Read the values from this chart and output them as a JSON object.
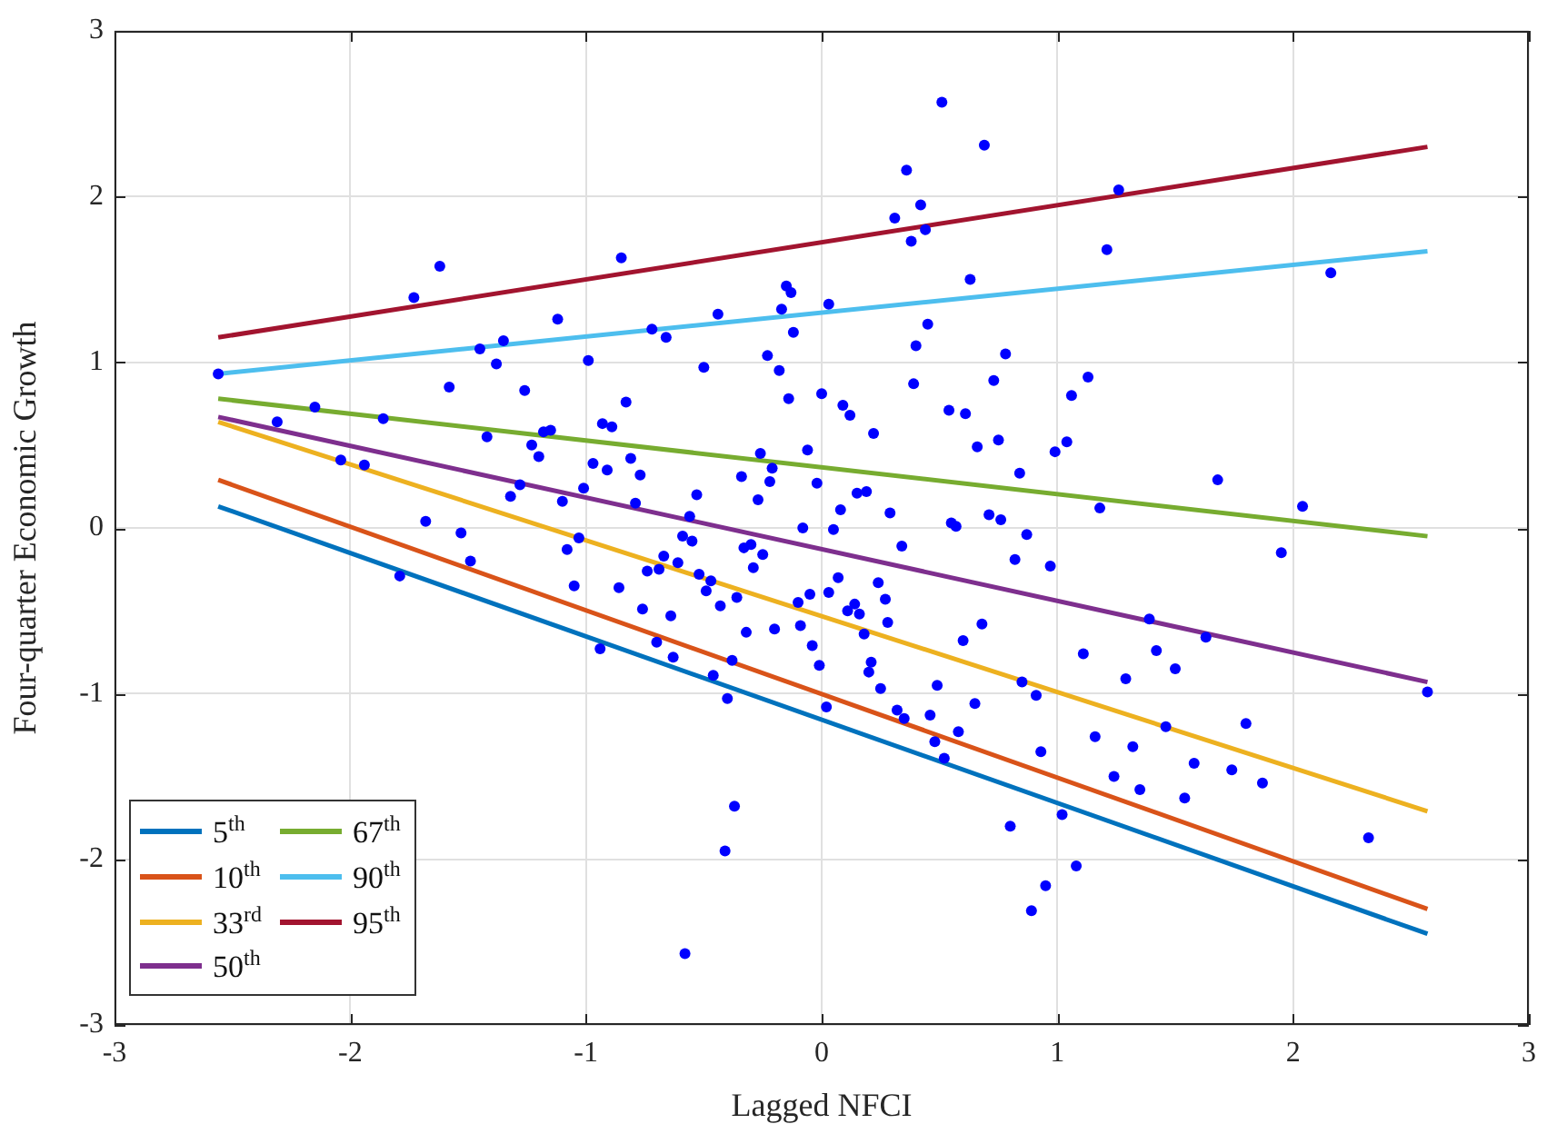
{
  "chart_data": {
    "type": "scatter",
    "xlabel": "Lagged NFCI",
    "ylabel": "Four-quarter Economic Growth",
    "xlim": [
      -3,
      3
    ],
    "ylim": [
      -3,
      3
    ],
    "xticks": [
      -3,
      -2,
      -1,
      0,
      1,
      2,
      3
    ],
    "yticks": [
      -3,
      -2,
      -1,
      0,
      1,
      2,
      3
    ],
    "grid": true,
    "legend": "bottom left",
    "series": [
      {
        "type": "scatter",
        "color": "#0000ff",
        "marker": "circle",
        "x": [
          -2.56,
          -1.62,
          -1.73,
          -0.85,
          -1.12,
          -1.45,
          -1.35,
          -1.38,
          -0.99,
          -0.72,
          -0.66,
          -0.44,
          -0.15,
          -0.13,
          -0.17,
          -0.12,
          0.03,
          -0.5,
          -0.23,
          -0.18,
          -0.14,
          0.0,
          -1.58,
          -1.26,
          -0.83,
          -2.15,
          -2.31,
          -1.86,
          -1.42,
          -0.93,
          -0.89,
          -1.18,
          -1.15,
          -1.23,
          -1.2,
          -0.26,
          -0.06,
          -0.21,
          -0.97,
          -0.91,
          -0.81,
          -0.77,
          -2.04,
          -1.94,
          -0.34,
          -0.22,
          -0.02,
          -1.28,
          -1.32,
          -1.1,
          -1.01,
          -0.79,
          -0.53,
          -0.27,
          -0.56,
          -0.08,
          -1.68,
          -1.53,
          -1.03,
          -0.59,
          0.51,
          0.69,
          0.36,
          0.42,
          0.31,
          0.44,
          0.38,
          1.26,
          1.21,
          2.16,
          0.63,
          0.45,
          0.4,
          0.78,
          0.39,
          0.73,
          1.13,
          1.06,
          0.09,
          0.12,
          0.54,
          0.61,
          0.22,
          0.66,
          0.75,
          0.99,
          1.04,
          0.84,
          1.68,
          2.04,
          0.15,
          0.19,
          0.08,
          0.29,
          0.71,
          0.76,
          1.18,
          0.55,
          0.57,
          0.05,
          0.87,
          -1.79,
          -1.49,
          -1.08,
          -1.05,
          -0.86,
          -0.94,
          -0.55,
          -0.67,
          -0.61,
          -0.74,
          -0.69,
          -0.52,
          -0.47,
          -0.49,
          -0.76,
          -0.64,
          -0.43,
          -0.36,
          -0.7,
          -0.63,
          -0.46,
          -0.38,
          -0.32,
          -0.2,
          -0.4,
          -0.33,
          -0.3,
          -0.25,
          -0.29,
          -0.1,
          -0.05,
          -0.09,
          -0.04,
          -0.01,
          0.02,
          0.03,
          -0.37,
          -0.41,
          -0.58,
          0.34,
          0.82,
          0.97,
          1.95,
          0.07,
          0.11,
          0.14,
          0.16,
          0.24,
          0.27,
          0.28,
          0.18,
          0.21,
          0.2,
          0.25,
          0.32,
          0.35,
          0.46,
          0.48,
          0.52,
          0.49,
          0.6,
          0.68,
          0.58,
          0.65,
          0.85,
          0.91,
          0.93,
          0.8,
          1.02,
          1.08,
          0.95,
          0.89,
          1.11,
          1.29,
          1.39,
          1.42,
          1.5,
          1.63,
          1.16,
          1.32,
          1.24,
          1.35,
          1.46,
          1.58,
          1.54,
          1.74,
          1.8,
          1.87,
          2.32,
          2.57
        ],
        "values": [
          0.93,
          1.58,
          1.39,
          1.63,
          1.26,
          1.08,
          1.13,
          0.99,
          1.01,
          1.2,
          1.15,
          1.29,
          1.46,
          1.42,
          1.32,
          1.18,
          1.35,
          0.97,
          1.04,
          0.95,
          0.78,
          0.81,
          0.85,
          0.83,
          0.76,
          0.73,
          0.64,
          0.66,
          0.55,
          0.63,
          0.61,
          0.58,
          0.59,
          0.5,
          0.43,
          0.45,
          0.47,
          0.36,
          0.39,
          0.35,
          0.42,
          0.32,
          0.41,
          0.38,
          0.31,
          0.28,
          0.27,
          0.26,
          0.19,
          0.16,
          0.24,
          0.15,
          0.2,
          0.17,
          0.07,
          0.0,
          0.04,
          -0.03,
          -0.06,
          -0.05,
          2.57,
          2.31,
          2.16,
          1.95,
          1.87,
          1.8,
          1.73,
          2.04,
          1.68,
          1.54,
          1.5,
          1.23,
          1.1,
          1.05,
          0.87,
          0.89,
          0.91,
          0.8,
          0.74,
          0.68,
          0.71,
          0.69,
          0.57,
          0.49,
          0.53,
          0.46,
          0.52,
          0.33,
          0.29,
          0.13,
          0.21,
          0.22,
          0.11,
          0.09,
          0.08,
          0.05,
          0.12,
          0.03,
          0.01,
          -0.01,
          -0.04,
          -0.29,
          -0.2,
          -0.13,
          -0.35,
          -0.36,
          -0.73,
          -0.08,
          -0.17,
          -0.21,
          -0.26,
          -0.25,
          -0.28,
          -0.32,
          -0.38,
          -0.49,
          -0.53,
          -0.47,
          -0.42,
          -0.69,
          -0.78,
          -0.89,
          -0.8,
          -0.63,
          -0.61,
          -1.03,
          -0.12,
          -0.1,
          -0.16,
          -0.24,
          -0.45,
          -0.4,
          -0.59,
          -0.71,
          -0.83,
          -1.08,
          -0.39,
          -1.68,
          -1.95,
          -2.57,
          -0.11,
          -0.19,
          -0.23,
          -0.15,
          -0.3,
          -0.5,
          -0.46,
          -0.52,
          -0.33,
          -0.43,
          -0.57,
          -0.64,
          -0.81,
          -0.87,
          -0.97,
          -1.1,
          -1.15,
          -1.13,
          -1.29,
          -1.39,
          -0.95,
          -0.68,
          -0.58,
          -1.23,
          -1.06,
          -0.93,
          -1.01,
          -1.35,
          -1.8,
          -1.73,
          -2.04,
          -2.16,
          -2.31,
          -0.76,
          -0.91,
          -0.55,
          -0.74,
          -0.85,
          -0.66,
          -1.26,
          -1.32,
          -1.5,
          -1.58,
          -1.2,
          -1.42,
          -1.63,
          -1.46,
          -1.18,
          -1.54,
          -1.87,
          -0.99
        ]
      },
      {
        "type": "line",
        "name": "5$^{th}$",
        "color": "#0072bd",
        "x": [
          -2.56,
          2.57
        ],
        "values": [
          0.13,
          -2.45
        ]
      },
      {
        "type": "line",
        "name": "10$^{th}$",
        "color": "#d95319",
        "x": [
          -2.56,
          2.57
        ],
        "values": [
          0.29,
          -2.3
        ]
      },
      {
        "type": "line",
        "name": "33$^{rd}$",
        "color": "#edb120",
        "x": [
          -2.56,
          2.57
        ],
        "values": [
          0.64,
          -1.71
        ]
      },
      {
        "type": "line",
        "name": "50$^{th}$",
        "color": "#7e2f8e",
        "x": [
          -2.56,
          2.57
        ],
        "values": [
          0.67,
          -0.93
        ]
      },
      {
        "type": "line",
        "name": "67$^{th}$",
        "color": "#77ac30",
        "x": [
          -2.56,
          2.57
        ],
        "values": [
          0.78,
          -0.05
        ]
      },
      {
        "type": "line",
        "name": "90$^{th}$",
        "color": "#4dbeee",
        "x": [
          -2.56,
          2.57
        ],
        "values": [
          0.93,
          1.67
        ]
      },
      {
        "type": "line",
        "name": "95$^{th}$",
        "color": "#a2142f",
        "x": [
          -2.56,
          2.57
        ],
        "values": [
          1.15,
          2.3
        ]
      }
    ]
  }
}
